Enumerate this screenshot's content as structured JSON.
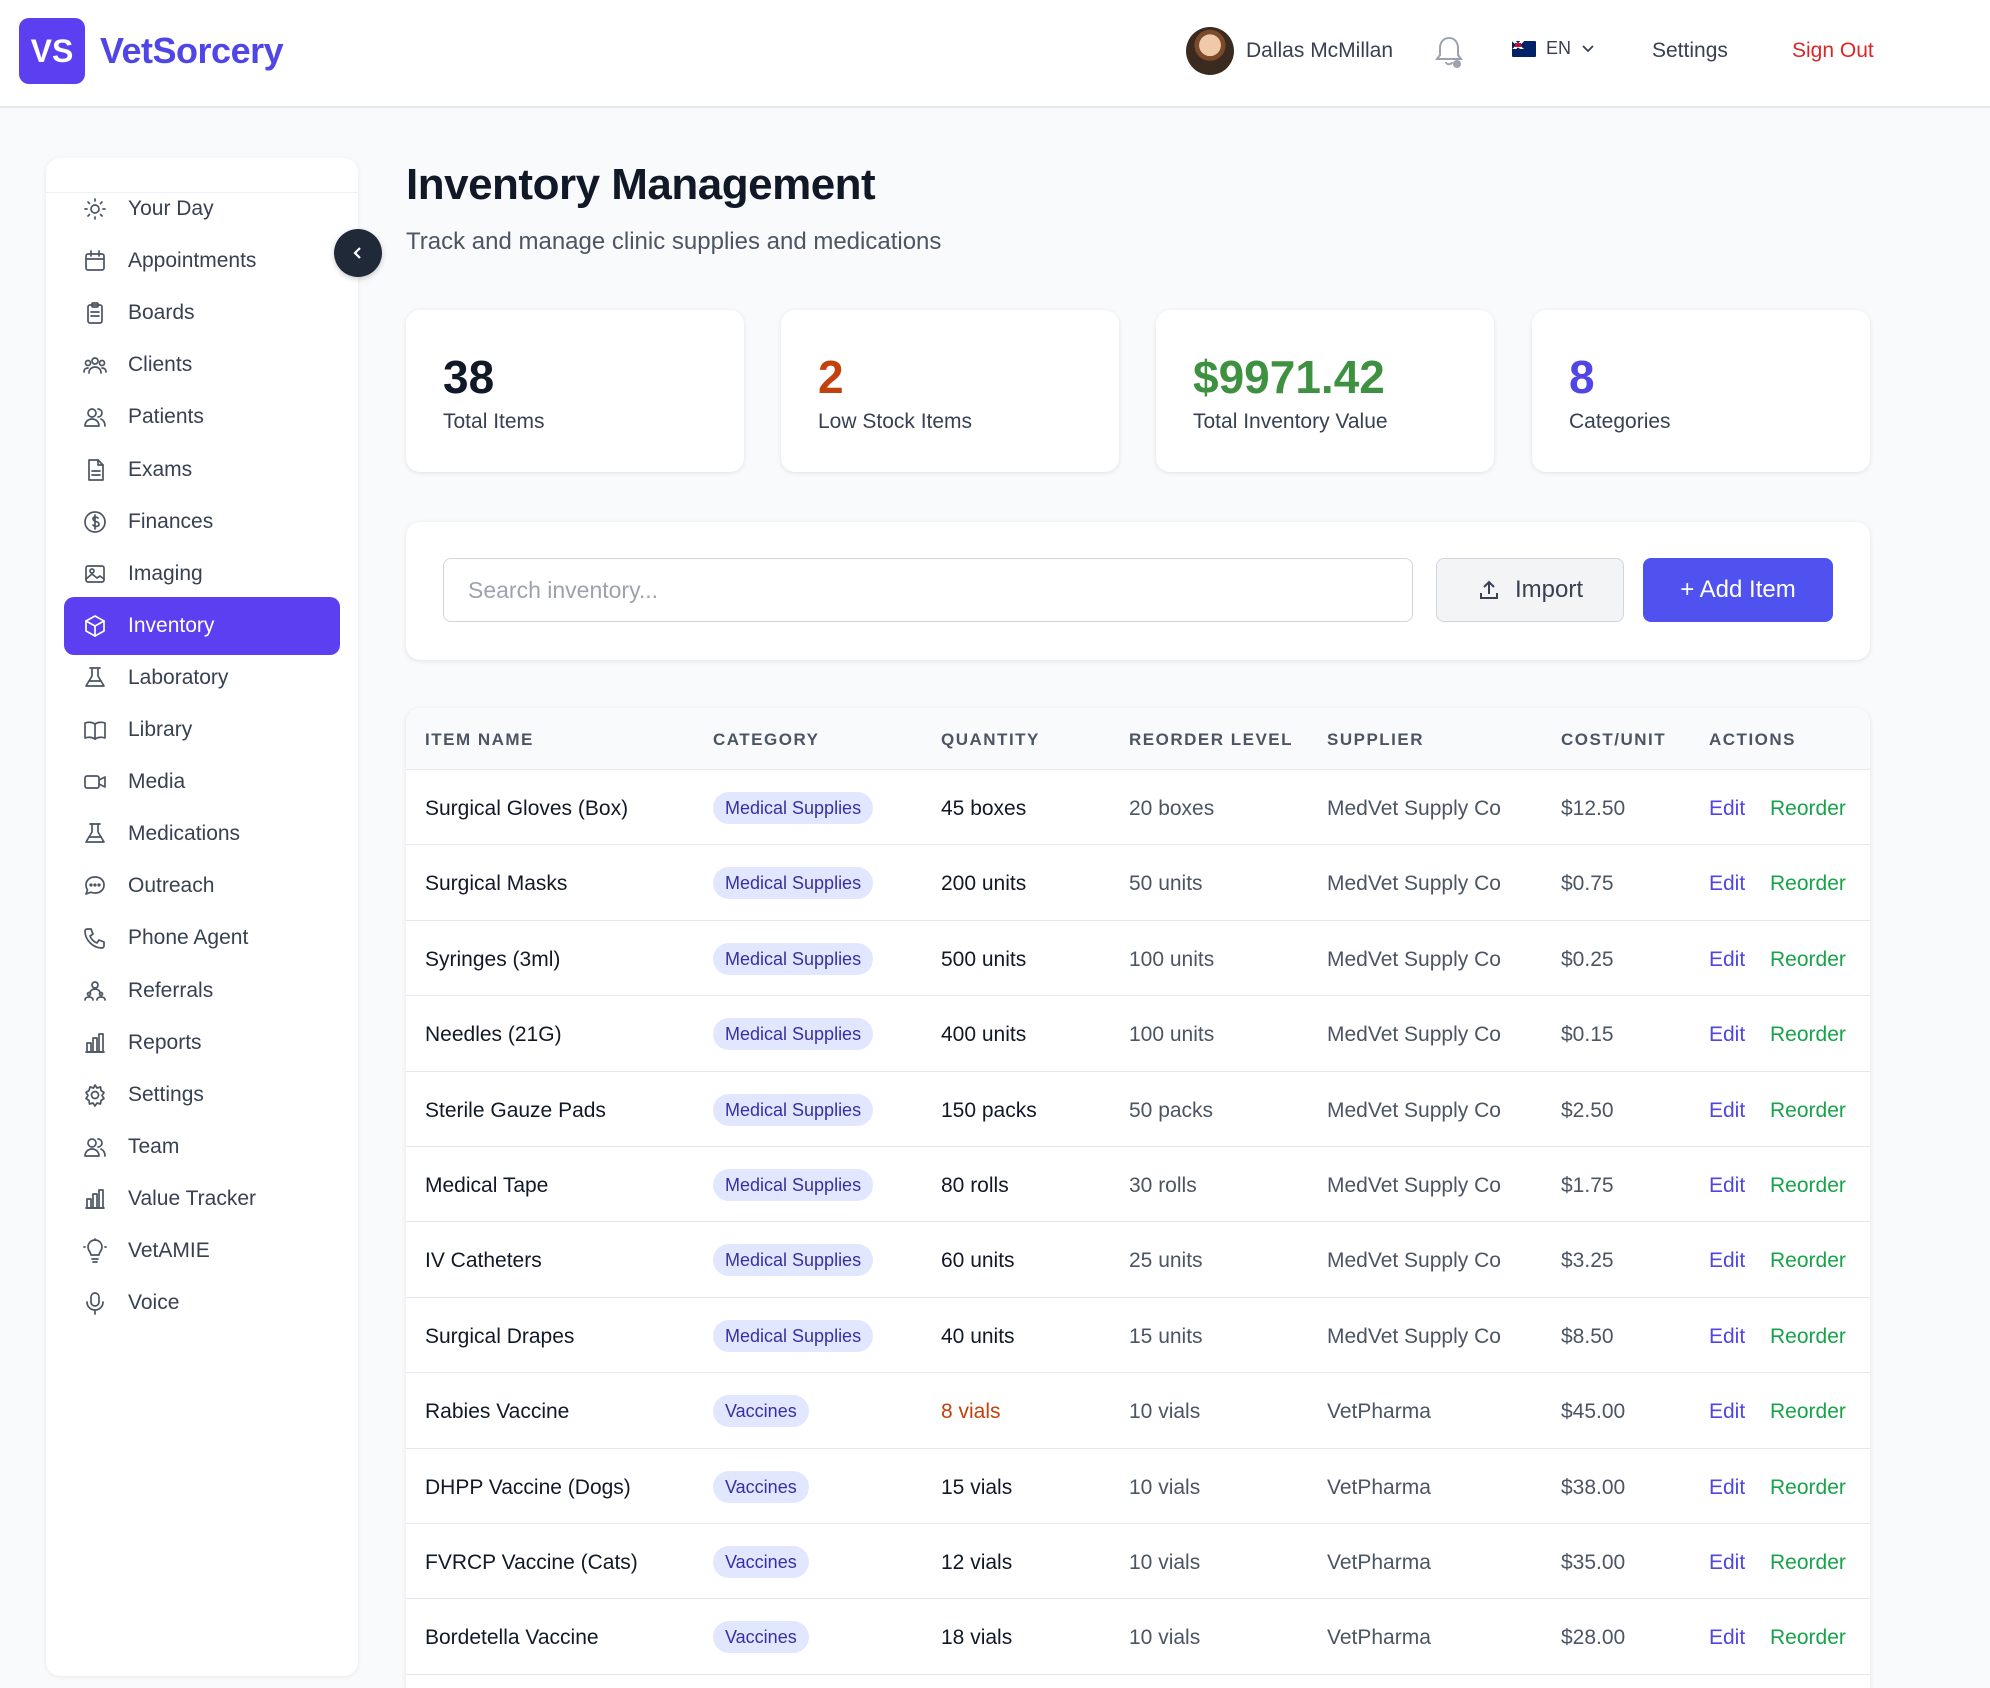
{
  "header": {
    "logo_initials": "VS",
    "app_name": "VetSorcery",
    "user_name": "Dallas McMillan",
    "language": "EN",
    "settings_label": "Settings",
    "signout_label": "Sign Out"
  },
  "sidebar": {
    "items": [
      {
        "label": "Your Day",
        "icon": "sun-icon"
      },
      {
        "label": "Appointments",
        "icon": "calendar-icon"
      },
      {
        "label": "Boards",
        "icon": "clipboard-icon"
      },
      {
        "label": "Clients",
        "icon": "users-icon"
      },
      {
        "label": "Patients",
        "icon": "user-group-icon"
      },
      {
        "label": "Exams",
        "icon": "document-icon"
      },
      {
        "label": "Finances",
        "icon": "dollar-icon"
      },
      {
        "label": "Imaging",
        "icon": "image-icon"
      },
      {
        "label": "Inventory",
        "icon": "cube-icon",
        "active": true
      },
      {
        "label": "Laboratory",
        "icon": "beaker-icon"
      },
      {
        "label": "Library",
        "icon": "book-icon"
      },
      {
        "label": "Media",
        "icon": "video-icon"
      },
      {
        "label": "Medications",
        "icon": "flask-icon"
      },
      {
        "label": "Outreach",
        "icon": "chat-icon"
      },
      {
        "label": "Phone Agent",
        "icon": "phone-icon"
      },
      {
        "label": "Referrals",
        "icon": "referral-icon"
      },
      {
        "label": "Reports",
        "icon": "bar-chart-icon"
      },
      {
        "label": "Settings",
        "icon": "cog-icon"
      },
      {
        "label": "Team",
        "icon": "team-icon"
      },
      {
        "label": "Value Tracker",
        "icon": "bar-chart-icon"
      },
      {
        "label": "VetAMIE",
        "icon": "lightbulb-icon"
      },
      {
        "label": "Voice",
        "icon": "microphone-icon"
      }
    ]
  },
  "page": {
    "title": "Inventory Management",
    "subtitle": "Track and manage clinic supplies and medications"
  },
  "stats": [
    {
      "value": "38",
      "label": "Total Items",
      "color": "#111827"
    },
    {
      "value": "2",
      "label": "Low Stock Items",
      "color": "#c2410c"
    },
    {
      "value": "$9971.42",
      "label": "Total Inventory Value",
      "color": "#3f9142"
    },
    {
      "value": "8",
      "label": "Categories",
      "color": "#4f46e5"
    }
  ],
  "toolbar": {
    "search_placeholder": "Search inventory...",
    "import_label": "Import",
    "add_label": "+ Add Item"
  },
  "table": {
    "headers": [
      "ITEM NAME",
      "CATEGORY",
      "QUANTITY",
      "REORDER LEVEL",
      "SUPPLIER",
      "COST/UNIT",
      "ACTIONS"
    ],
    "edit_label": "Edit",
    "reorder_label": "Reorder",
    "rows": [
      {
        "name": "Surgical Gloves (Box)",
        "category": "Medical Supplies",
        "quantity": "45 boxes",
        "reorder": "20 boxes",
        "supplier": "MedVet Supply Co",
        "cost": "$12.50",
        "low": false
      },
      {
        "name": "Surgical Masks",
        "category": "Medical Supplies",
        "quantity": "200 units",
        "reorder": "50 units",
        "supplier": "MedVet Supply Co",
        "cost": "$0.75",
        "low": false
      },
      {
        "name": "Syringes (3ml)",
        "category": "Medical Supplies",
        "quantity": "500 units",
        "reorder": "100 units",
        "supplier": "MedVet Supply Co",
        "cost": "$0.25",
        "low": false
      },
      {
        "name": "Needles (21G)",
        "category": "Medical Supplies",
        "quantity": "400 units",
        "reorder": "100 units",
        "supplier": "MedVet Supply Co",
        "cost": "$0.15",
        "low": false
      },
      {
        "name": "Sterile Gauze Pads",
        "category": "Medical Supplies",
        "quantity": "150 packs",
        "reorder": "50 packs",
        "supplier": "MedVet Supply Co",
        "cost": "$2.50",
        "low": false
      },
      {
        "name": "Medical Tape",
        "category": "Medical Supplies",
        "quantity": "80 rolls",
        "reorder": "30 rolls",
        "supplier": "MedVet Supply Co",
        "cost": "$1.75",
        "low": false
      },
      {
        "name": "IV Catheters",
        "category": "Medical Supplies",
        "quantity": "60 units",
        "reorder": "25 units",
        "supplier": "MedVet Supply Co",
        "cost": "$3.25",
        "low": false
      },
      {
        "name": "Surgical Drapes",
        "category": "Medical Supplies",
        "quantity": "40 units",
        "reorder": "15 units",
        "supplier": "MedVet Supply Co",
        "cost": "$8.50",
        "low": false
      },
      {
        "name": "Rabies Vaccine",
        "category": "Vaccines",
        "quantity": "8 vials",
        "reorder": "10 vials",
        "supplier": "VetPharma",
        "cost": "$45.00",
        "low": true
      },
      {
        "name": "DHPP Vaccine (Dogs)",
        "category": "Vaccines",
        "quantity": "15 vials",
        "reorder": "10 vials",
        "supplier": "VetPharma",
        "cost": "$38.00",
        "low": false
      },
      {
        "name": "FVRCP Vaccine (Cats)",
        "category": "Vaccines",
        "quantity": "12 vials",
        "reorder": "10 vials",
        "supplier": "VetPharma",
        "cost": "$35.00",
        "low": false
      },
      {
        "name": "Bordetella Vaccine",
        "category": "Vaccines",
        "quantity": "18 vials",
        "reorder": "10 vials",
        "supplier": "VetPharma",
        "cost": "$28.00",
        "low": false
      }
    ]
  }
}
